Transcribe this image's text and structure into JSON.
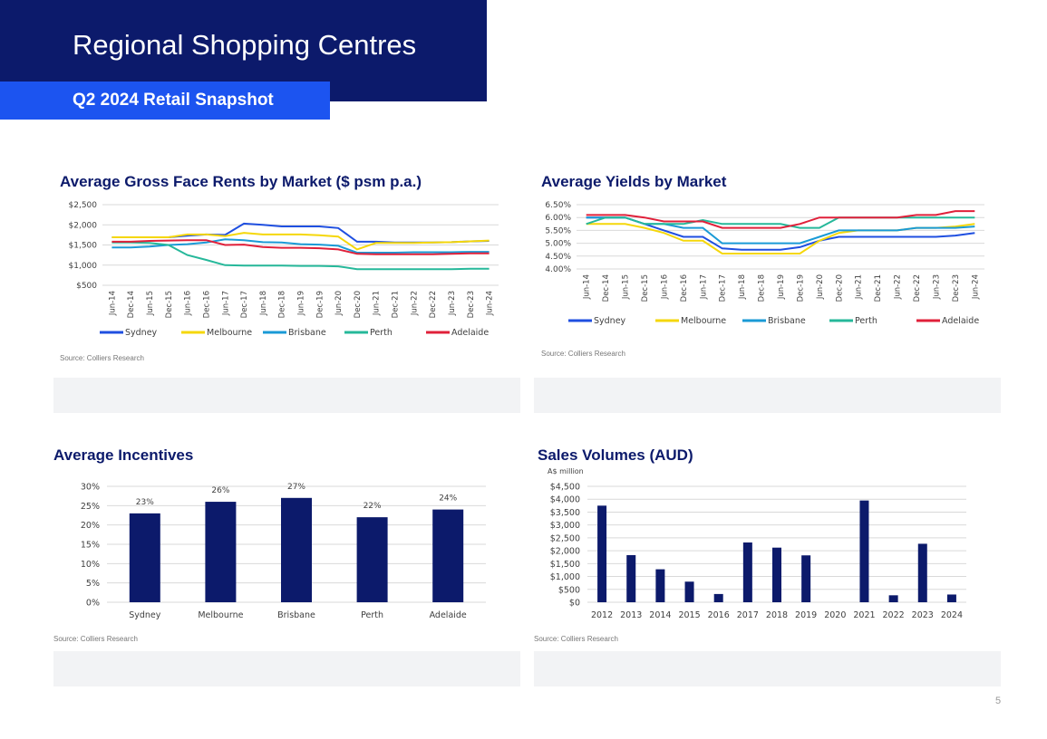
{
  "header": {
    "title": "Regional Shopping Centres",
    "subtitle": "Q2 2024 Retail Snapshot"
  },
  "page_number": "5",
  "source_text": "Source: Colliers Research",
  "colors": {
    "navy": "#0c1a6b",
    "blue": "#1c54f0",
    "Sydney": "#1f4fe0",
    "Melbourne": "#f5d70a",
    "Brisbane": "#1a9ad6",
    "Perth": "#26b89a",
    "Adelaide": "#e0203a"
  },
  "chart_data": [
    {
      "id": "rents",
      "type": "line",
      "title": "Average Gross Face Rents by Market ($ psm p.a.)",
      "x_ticks": [
        "Jun-14",
        "Dec-14",
        "Jun-15",
        "Dec-15",
        "Jun-16",
        "Dec-16",
        "Jun-17",
        "Dec-17",
        "Jun-18",
        "Dec-18",
        "Jun-19",
        "Dec-19",
        "Jun-20",
        "Dec-20",
        "Jun-21",
        "Dec-21",
        "Jun-22",
        "Dec-22",
        "Jun-23",
        "Dec-23",
        "Jun-24"
      ],
      "y_ticks": [
        "$500",
        "$1,000",
        "$1,500",
        "$2,000",
        "$2,500"
      ],
      "ylim": [
        500,
        2500
      ],
      "legend_position": "bottom",
      "series": [
        {
          "name": "Sydney",
          "values": [
            1690,
            1690,
            1690,
            1690,
            1730,
            1760,
            1750,
            2030,
            2000,
            1960,
            1960,
            1960,
            1920,
            1580,
            1580,
            1560,
            1560,
            1560,
            1570,
            1590,
            1600
          ]
        },
        {
          "name": "Melbourne",
          "values": [
            1690,
            1690,
            1690,
            1690,
            1760,
            1760,
            1720,
            1800,
            1760,
            1760,
            1760,
            1740,
            1710,
            1390,
            1550,
            1550,
            1550,
            1560,
            1570,
            1590,
            1610
          ]
        },
        {
          "name": "Brisbane",
          "values": [
            1440,
            1440,
            1460,
            1500,
            1520,
            1560,
            1640,
            1620,
            1570,
            1560,
            1520,
            1510,
            1480,
            1310,
            1310,
            1310,
            1320,
            1320,
            1320,
            1330,
            1330
          ]
        },
        {
          "name": "Perth",
          "values": [
            1560,
            1560,
            1550,
            1500,
            1250,
            1130,
            1000,
            990,
            990,
            990,
            980,
            980,
            970,
            900,
            900,
            900,
            900,
            900,
            900,
            910,
            910
          ]
        },
        {
          "name": "Adelaide",
          "values": [
            1580,
            1580,
            1600,
            1610,
            1620,
            1620,
            1500,
            1510,
            1450,
            1430,
            1430,
            1420,
            1390,
            1280,
            1270,
            1270,
            1270,
            1270,
            1280,
            1290,
            1290
          ]
        }
      ]
    },
    {
      "id": "yields",
      "type": "line",
      "title": "Average Yields by Market",
      "x_ticks": [
        "Jun-14",
        "Dec-14",
        "Jun-15",
        "Dec-15",
        "Jun-16",
        "Dec-16",
        "Jun-17",
        "Dec-17",
        "Jun-18",
        "Dec-18",
        "Jun-19",
        "Dec-19",
        "Jun-20",
        "Dec-20",
        "Jun-21",
        "Dec-21",
        "Jun-22",
        "Dec-22",
        "Jun-23",
        "Dec-23",
        "Jun-24"
      ],
      "y_ticks": [
        "4.00%",
        "4.50%",
        "5.00%",
        "5.50%",
        "6.00%",
        "6.50%"
      ],
      "ylim": [
        4.0,
        6.5
      ],
      "legend_position": "bottom",
      "series": [
        {
          "name": "Sydney",
          "values": [
            6.0,
            6.0,
            6.0,
            5.75,
            5.5,
            5.25,
            5.25,
            4.8,
            4.75,
            4.75,
            4.75,
            4.85,
            5.1,
            5.25,
            5.25,
            5.25,
            5.25,
            5.25,
            5.25,
            5.3,
            5.4
          ]
        },
        {
          "name": "Melbourne",
          "values": [
            5.75,
            5.75,
            5.75,
            5.6,
            5.4,
            5.1,
            5.1,
            4.6,
            4.6,
            4.6,
            4.6,
            4.6,
            5.1,
            5.4,
            5.5,
            5.5,
            5.5,
            5.6,
            5.6,
            5.65,
            5.75
          ]
        },
        {
          "name": "Brisbane",
          "values": [
            6.0,
            6.0,
            6.0,
            5.75,
            5.75,
            5.6,
            5.6,
            5.0,
            5.0,
            5.0,
            5.0,
            5.0,
            5.25,
            5.5,
            5.5,
            5.5,
            5.5,
            5.6,
            5.6,
            5.6,
            5.65
          ]
        },
        {
          "name": "Perth",
          "values": [
            5.75,
            6.0,
            6.0,
            5.75,
            5.75,
            5.75,
            5.9,
            5.75,
            5.75,
            5.75,
            5.75,
            5.6,
            5.6,
            6.0,
            6.0,
            6.0,
            6.0,
            6.0,
            6.0,
            6.0,
            6.0
          ]
        },
        {
          "name": "Adelaide",
          "values": [
            6.1,
            6.1,
            6.1,
            6.0,
            5.85,
            5.85,
            5.85,
            5.6,
            5.6,
            5.6,
            5.6,
            5.75,
            6.0,
            6.0,
            6.0,
            6.0,
            6.0,
            6.1,
            6.1,
            6.25,
            6.25
          ]
        }
      ]
    },
    {
      "id": "incentives",
      "type": "bar",
      "title": "Average Incentives",
      "categories": [
        "Sydney",
        "Melbourne",
        "Brisbane",
        "Perth",
        "Adelaide"
      ],
      "values": [
        23,
        26,
        27,
        22,
        24
      ],
      "value_labels": [
        "23%",
        "26%",
        "27%",
        "22%",
        "24%"
      ],
      "y_ticks": [
        "0%",
        "5%",
        "10%",
        "15%",
        "20%",
        "25%",
        "30%"
      ],
      "ylim": [
        0,
        30
      ]
    },
    {
      "id": "sales",
      "type": "bar",
      "title": "Sales Volumes (AUD)",
      "ylabel": "A$ million",
      "categories": [
        "2012",
        "2013",
        "2014",
        "2015",
        "2016",
        "2017",
        "2018",
        "2019",
        "2020",
        "2021",
        "2022",
        "2023",
        "2024"
      ],
      "values": [
        3750,
        1830,
        1280,
        800,
        320,
        2320,
        2120,
        1820,
        0,
        3950,
        270,
        2270,
        300
      ],
      "y_ticks": [
        "$0",
        "$500",
        "$1,000",
        "$1,500",
        "$2,000",
        "$2,500",
        "$3,000",
        "$3,500",
        "$4,000",
        "$4,500"
      ],
      "ylim": [
        0,
        4500
      ]
    }
  ]
}
